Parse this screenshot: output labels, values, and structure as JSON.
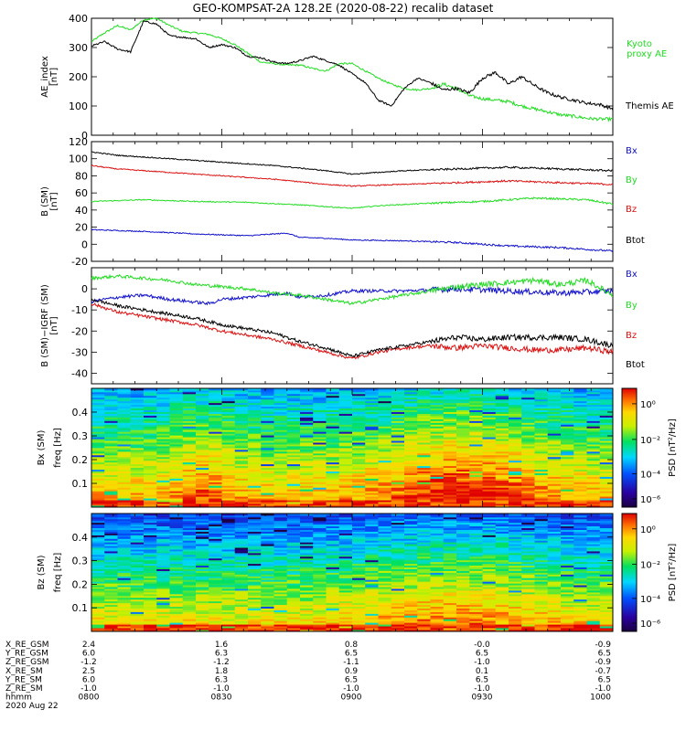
{
  "title": "GEO-KOMPSAT-2A 128.2E (2020-08-22) recalib dataset",
  "colors": {
    "black": "#000000",
    "green": "#22dd22",
    "red": "#dd1111",
    "blue": "#1111cc"
  },
  "chart_data": [
    {
      "type": "line",
      "ylabel": "AE_index [nT]",
      "ylim": [
        0,
        400
      ],
      "yticks": [
        0,
        100,
        200,
        300,
        400
      ],
      "x_hours": [
        8.0,
        10.0
      ],
      "series": [
        {
          "name": "Kyoto proxy AE",
          "label_lines": [
            "Kyoto",
            "proxy AE"
          ],
          "color": "#22dd22",
          "t": [
            8.0,
            8.05,
            8.1,
            8.15,
            8.2,
            8.25,
            8.3,
            8.35,
            8.4,
            8.45,
            8.5,
            8.55,
            8.6,
            8.65,
            8.7,
            8.75,
            8.8,
            8.85,
            8.9,
            8.95,
            9.0,
            9.05,
            9.1,
            9.15,
            9.2,
            9.25,
            9.3,
            9.35,
            9.4,
            9.45,
            9.5,
            9.55,
            9.6,
            9.65,
            9.7,
            9.75,
            9.8,
            9.85,
            9.9,
            9.95,
            10.0
          ],
          "values": [
            320,
            350,
            375,
            360,
            395,
            400,
            375,
            355,
            350,
            345,
            330,
            310,
            280,
            250,
            245,
            240,
            240,
            228,
            220,
            245,
            245,
            220,
            195,
            175,
            160,
            155,
            160,
            175,
            160,
            135,
            125,
            120,
            115,
            100,
            90,
            80,
            70,
            65,
            58,
            55,
            55
          ]
        },
        {
          "name": "Themis AE",
          "label_lines": [
            "Themis AE"
          ],
          "color": "#000000",
          "t": [
            8.0,
            8.05,
            8.1,
            8.15,
            8.2,
            8.25,
            8.3,
            8.35,
            8.4,
            8.45,
            8.5,
            8.55,
            8.6,
            8.65,
            8.7,
            8.75,
            8.8,
            8.85,
            8.9,
            8.95,
            9.0,
            9.05,
            9.1,
            9.15,
            9.2,
            9.25,
            9.3,
            9.35,
            9.4,
            9.45,
            9.5,
            9.55,
            9.6,
            9.65,
            9.7,
            9.75,
            9.8,
            9.85,
            9.9,
            9.95,
            10.0
          ],
          "values": [
            305,
            320,
            295,
            285,
            390,
            380,
            340,
            335,
            330,
            300,
            310,
            300,
            270,
            265,
            250,
            245,
            255,
            270,
            255,
            240,
            210,
            180,
            120,
            100,
            160,
            195,
            180,
            155,
            160,
            145,
            195,
            215,
            175,
            200,
            170,
            145,
            130,
            120,
            110,
            105,
            90
          ]
        }
      ]
    },
    {
      "type": "line",
      "ylabel": "B (SM) [nT]",
      "ylim": [
        -20,
        120
      ],
      "yticks": [
        -20,
        0,
        20,
        40,
        60,
        80,
        100,
        120
      ],
      "series": [
        {
          "name": "Bx",
          "color": "#1111cc",
          "t": [
            8.0,
            8.2,
            8.4,
            8.6,
            8.75,
            8.8,
            8.9,
            9.0,
            9.2,
            9.4,
            9.6,
            9.8,
            10.0
          ],
          "values": [
            17,
            15,
            12,
            10,
            13,
            8,
            7,
            5,
            4,
            2,
            -2,
            -4,
            -8
          ]
        },
        {
          "name": "By",
          "color": "#22dd22",
          "t": [
            8.0,
            8.2,
            8.4,
            8.6,
            8.8,
            9.0,
            9.1,
            9.3,
            9.5,
            9.7,
            9.9,
            10.0
          ],
          "values": [
            50,
            52,
            50,
            49,
            46,
            42,
            45,
            48,
            50,
            54,
            52,
            47
          ]
        },
        {
          "name": "Bz",
          "color": "#dd1111",
          "t": [
            8.0,
            8.1,
            8.3,
            8.5,
            8.7,
            8.9,
            9.0,
            9.2,
            9.4,
            9.6,
            9.8,
            10.0
          ],
          "values": [
            92,
            88,
            84,
            80,
            76,
            70,
            68,
            70,
            72,
            74,
            72,
            70
          ]
        },
        {
          "name": "Btot",
          "color": "#000000",
          "t": [
            8.0,
            8.1,
            8.3,
            8.5,
            8.7,
            8.9,
            9.0,
            9.2,
            9.4,
            9.6,
            9.8,
            10.0
          ],
          "values": [
            108,
            104,
            100,
            96,
            92,
            86,
            82,
            86,
            88,
            90,
            88,
            86
          ]
        }
      ]
    },
    {
      "type": "line",
      "ylabel": "B (SM)−IGRF (SM) [nT]",
      "ylim": [
        -45,
        10
      ],
      "yticks": [
        -40,
        -30,
        -20,
        -10,
        0
      ],
      "series": [
        {
          "name": "Bx",
          "color": "#1111cc",
          "t": [
            8.0,
            8.1,
            8.2,
            8.3,
            8.45,
            8.5,
            8.6,
            8.75,
            8.8,
            8.9,
            9.0,
            9.2,
            9.4,
            9.6,
            9.8,
            10.0
          ],
          "values": [
            -6,
            -4,
            -3,
            -5,
            -7,
            -5,
            -4,
            -2,
            -4,
            -3,
            -1,
            -1,
            0,
            -1,
            -2,
            -1
          ]
        },
        {
          "name": "By",
          "color": "#22dd22",
          "t": [
            8.0,
            8.1,
            8.2,
            8.3,
            8.4,
            8.5,
            8.6,
            8.7,
            8.8,
            8.9,
            9.0,
            9.1,
            9.2,
            9.3,
            9.4,
            9.5,
            9.6,
            9.7,
            9.8,
            9.9,
            10.0
          ],
          "values": [
            5,
            6,
            5,
            4,
            2,
            1,
            0,
            -2,
            -3,
            -5,
            -7,
            -5,
            -3,
            -1,
            1,
            2,
            3,
            4,
            2,
            4,
            -3
          ]
        },
        {
          "name": "Bz",
          "color": "#dd1111",
          "t": [
            8.0,
            8.1,
            8.2,
            8.3,
            8.4,
            8.5,
            8.6,
            8.7,
            8.8,
            8.9,
            9.0,
            9.1,
            9.2,
            9.3,
            9.4,
            9.5,
            9.6,
            9.7,
            9.8,
            9.9,
            10.0
          ],
          "values": [
            -7,
            -11,
            -13,
            -15,
            -17,
            -20,
            -22,
            -24,
            -27,
            -30,
            -33,
            -30,
            -28,
            -27,
            -28,
            -27,
            -28,
            -29,
            -29,
            -28,
            -30
          ]
        },
        {
          "name": "Btot",
          "color": "#000000",
          "t": [
            8.0,
            8.1,
            8.2,
            8.3,
            8.4,
            8.5,
            8.6,
            8.7,
            8.8,
            8.9,
            9.0,
            9.1,
            9.2,
            9.3,
            9.4,
            9.5,
            9.6,
            9.7,
            9.8,
            9.9,
            10.0
          ],
          "values": [
            -5,
            -8,
            -10,
            -12,
            -14,
            -17,
            -19,
            -21,
            -25,
            -28,
            -32,
            -29,
            -27,
            -25,
            -23,
            -24,
            -23,
            -23,
            -23,
            -24,
            -27
          ]
        }
      ]
    },
    {
      "type": "heatmap",
      "ylabel": "Bx (SM)",
      "ylabel2": "freq [Hz]",
      "yticks": [
        0.1,
        0.2,
        0.3,
        0.4
      ],
      "ylim": [
        0,
        0.5
      ],
      "colorbar_label": "PSD [nT²/Hz]",
      "colorbar_ticks": [
        "10⁰",
        "10⁻²",
        "10⁻⁴",
        "10⁻⁶"
      ]
    },
    {
      "type": "heatmap",
      "ylabel": "Bz (SM)",
      "ylabel2": "freq [Hz]",
      "yticks": [
        0.1,
        0.2,
        0.3,
        0.4
      ],
      "ylim": [
        0,
        0.5
      ],
      "colorbar_label": "PSD [nT²/Hz]",
      "colorbar_ticks": [
        "10⁰",
        "10⁻²",
        "10⁻⁴",
        "10⁻⁶"
      ]
    }
  ],
  "ephemeris": {
    "row_labels": [
      "X_RE_GSM",
      "Y_RE_GSM",
      "Z_RE_GSM",
      "X_RE_SM",
      "Y_RE_SM",
      "Z_RE_SM",
      "hhmm"
    ],
    "columns": [
      [
        "2.4",
        "6.0",
        "-1.2",
        "2.5",
        "6.0",
        "-1.0",
        "0800"
      ],
      [
        "1.6",
        "6.3",
        "-1.2",
        "1.8",
        "6.3",
        "-1.0",
        "0830"
      ],
      [
        "0.8",
        "6.5",
        "-1.1",
        "0.9",
        "6.5",
        "-1.0",
        "0900"
      ],
      [
        "-0.0",
        "6.5",
        "-1.0",
        "0.1",
        "6.5",
        "-1.0",
        "0930"
      ],
      [
        "-0.9",
        "6.5",
        "-0.9",
        "-0.7",
        "6.5",
        "-1.0",
        "1000"
      ]
    ],
    "date": "2020 Aug 22"
  }
}
